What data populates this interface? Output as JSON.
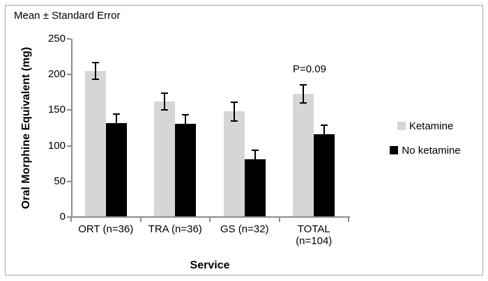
{
  "chart_data": {
    "type": "bar",
    "title": "Mean ± Standard Error",
    "xlabel": "Service",
    "ylabel": "Oral Morphine Equivalent (mg)",
    "ylim": [
      0,
      250
    ],
    "yticks": [
      0,
      50,
      100,
      150,
      200,
      250
    ],
    "categories": [
      "ORT (n=36)",
      "TRA (n=36)",
      "GS (n=32)",
      "TOTAL (n=104)"
    ],
    "category_label_lines": [
      [
        "ORT (n=36)"
      ],
      [
        "TRA (n=36)"
      ],
      [
        "GS (n=32)"
      ],
      [
        "TOTAL",
        "(n=104)"
      ]
    ],
    "series": [
      {
        "name": "Ketamine",
        "color": "#d6d6d6",
        "values": [
          205,
          162,
          148,
          173
        ],
        "errors": [
          12,
          12,
          13,
          13
        ]
      },
      {
        "name": "No ketamine",
        "color": "#000000",
        "values": [
          132,
          131,
          81,
          116
        ],
        "errors": [
          13,
          13,
          13,
          13
        ]
      }
    ],
    "error_bars": "standard error",
    "annotations": [
      {
        "text": "P=0.09",
        "category": "TOTAL (n=104)",
        "series": "Ketamine"
      }
    ],
    "legend_position": "right",
    "grid": false
  },
  "colors": {
    "axis": "#8c8c8c",
    "frame_border": "#a6a6a6",
    "error_bar": "#000000"
  }
}
